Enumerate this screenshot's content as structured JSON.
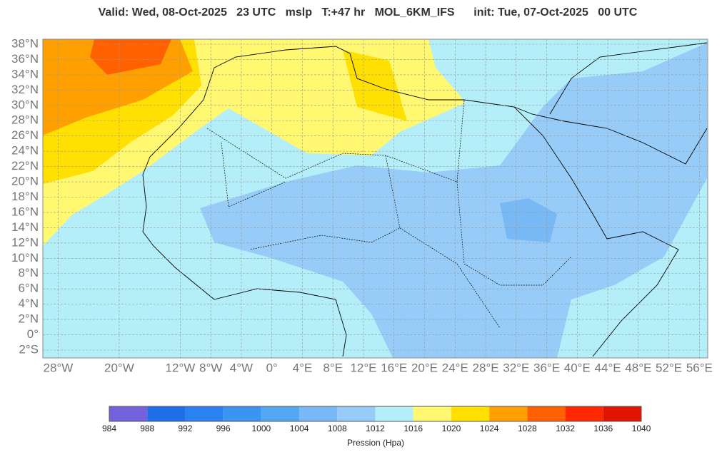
{
  "header": {
    "title": "Valid: Wed, 08-Oct-2025   23 UTC   mslp   T:+47 hr   MOL_6KM_IFS      init: Tue, 07-Oct-2025   00 UTC"
  },
  "map": {
    "lat_ticks": [
      {
        "value": 38,
        "label": "38°N"
      },
      {
        "value": 36,
        "label": "36°N"
      },
      {
        "value": 34,
        "label": "34°N"
      },
      {
        "value": 32,
        "label": "32°N"
      },
      {
        "value": 30,
        "label": "30°N"
      },
      {
        "value": 28,
        "label": "28°N"
      },
      {
        "value": 26,
        "label": "26°N"
      },
      {
        "value": 24,
        "label": "24°N"
      },
      {
        "value": 22,
        "label": "22°N"
      },
      {
        "value": 20,
        "label": "20°N"
      },
      {
        "value": 18,
        "label": "18°N"
      },
      {
        "value": 16,
        "label": "16°N"
      },
      {
        "value": 14,
        "label": "14°N"
      },
      {
        "value": 12,
        "label": "12°N"
      },
      {
        "value": 10,
        "label": "10°N"
      },
      {
        "value": 8,
        "label": "8°N"
      },
      {
        "value": 6,
        "label": "6°N"
      },
      {
        "value": 4,
        "label": "4°N"
      },
      {
        "value": 2,
        "label": "2°N"
      },
      {
        "value": 0,
        "label": "0°"
      },
      {
        "value": -2,
        "label": "2°S"
      }
    ],
    "lon_ticks": [
      {
        "value": -28,
        "label": "28°W"
      },
      {
        "value": -20,
        "label": "20°W"
      },
      {
        "value": -12,
        "label": "12°W"
      },
      {
        "value": -8,
        "label": "8°W"
      },
      {
        "value": -4,
        "label": "4°W"
      },
      {
        "value": 0,
        "label": "0°"
      },
      {
        "value": 4,
        "label": "4°E"
      },
      {
        "value": 8,
        "label": "8°E"
      },
      {
        "value": 12,
        "label": "12°E"
      },
      {
        "value": 16,
        "label": "16°E"
      },
      {
        "value": 20,
        "label": "20°E"
      },
      {
        "value": 24,
        "label": "24°E"
      },
      {
        "value": 28,
        "label": "28°E"
      },
      {
        "value": 32,
        "label": "32°E"
      },
      {
        "value": 36,
        "label": "36°E"
      },
      {
        "value": 40,
        "label": "40°E"
      },
      {
        "value": 44,
        "label": "44°E"
      },
      {
        "value": 48,
        "label": "48°E"
      },
      {
        "value": 52,
        "label": "52°E"
      },
      {
        "value": 56,
        "label": "56°E"
      }
    ]
  },
  "colorbar": {
    "labels": [
      984,
      988,
      992,
      996,
      1000,
      1004,
      1008,
      1012,
      1016,
      1020,
      1024,
      1028,
      1032,
      1036,
      1040
    ],
    "colors": [
      "#7461dc",
      "#1e6ee8",
      "#2a82f0",
      "#3c94f2",
      "#52a8f2",
      "#78b8f6",
      "#98ccf8",
      "#b4eef8",
      "#fff870",
      "#ffe000",
      "#ffa000",
      "#ff6000",
      "#ff2800",
      "#e01400"
    ],
    "title": "Pression (Hpa)"
  }
}
